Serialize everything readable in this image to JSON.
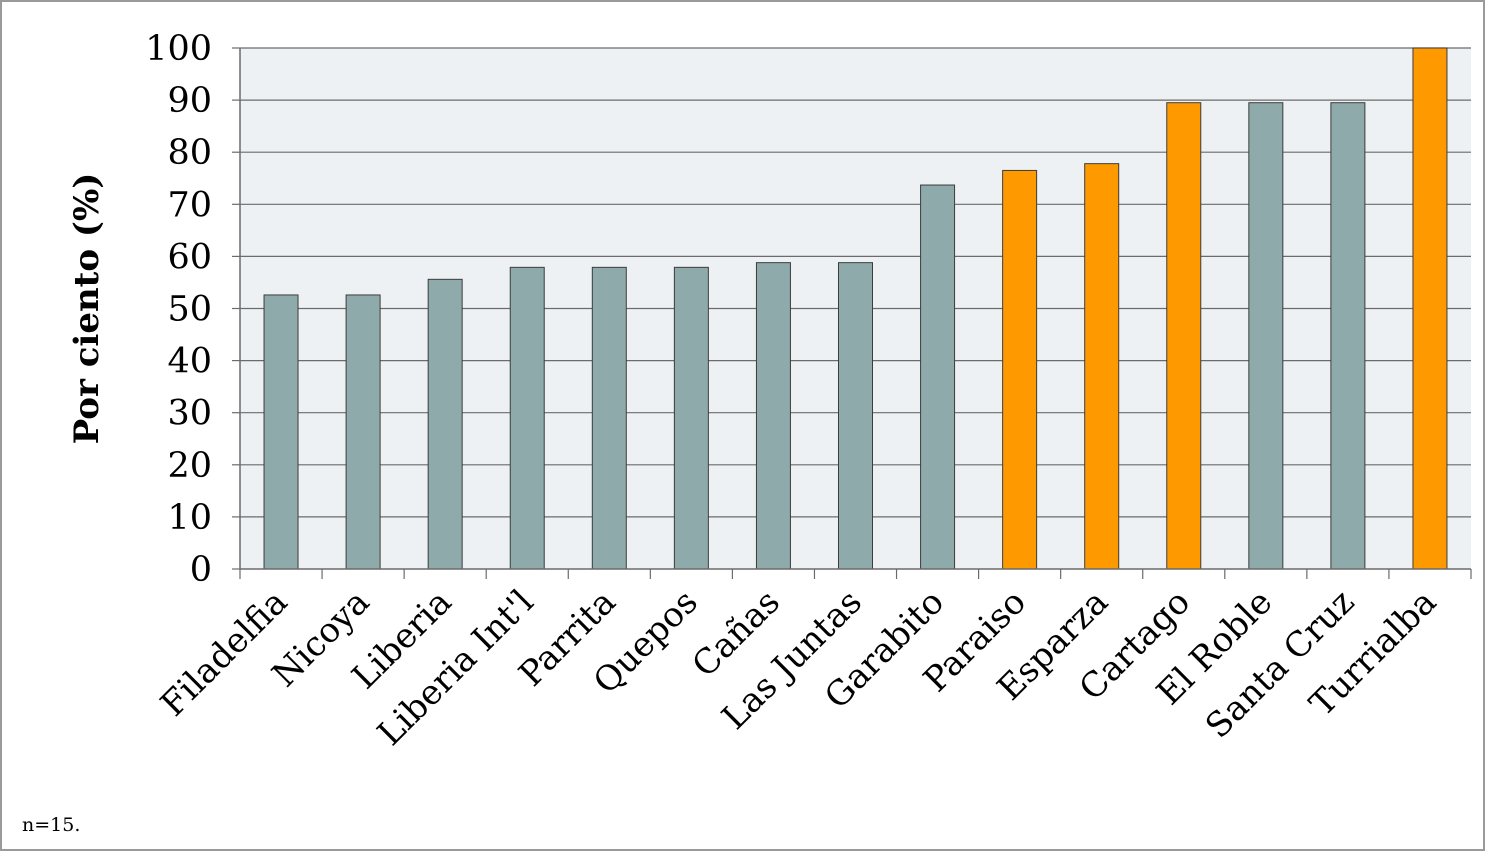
{
  "chart_data": {
    "type": "bar",
    "title": "",
    "xlabel": "",
    "ylabel": "Por ciento (%)",
    "ylim": [
      0,
      100
    ],
    "yticks": [
      0,
      10,
      20,
      30,
      40,
      50,
      60,
      70,
      80,
      90,
      100
    ],
    "grid": true,
    "legend": "none",
    "categories": [
      "Filadelfia",
      "Nicoya",
      "Liberia",
      "Liberia Int'l",
      "Parrita",
      "Quepos",
      "Cañas",
      "Las Juntas",
      "Garabito",
      "Paraiso",
      "Esparza",
      "Cartago",
      "El Roble",
      "Santa Cruz",
      "Turrialba"
    ],
    "values": [
      52.6,
      52.6,
      55.6,
      57.9,
      57.9,
      57.9,
      58.8,
      58.8,
      73.7,
      76.5,
      77.8,
      89.5,
      89.5,
      89.5,
      100
    ],
    "highlighted": [
      false,
      false,
      false,
      false,
      false,
      false,
      false,
      false,
      false,
      true,
      true,
      true,
      false,
      false,
      true
    ],
    "colors": {
      "default_bar": "#8eaaaa",
      "highlight_bar": "#ff9900",
      "plot_background": "#eef1f3",
      "gridline": "#6b6b6b"
    }
  },
  "footnote": "n=15."
}
